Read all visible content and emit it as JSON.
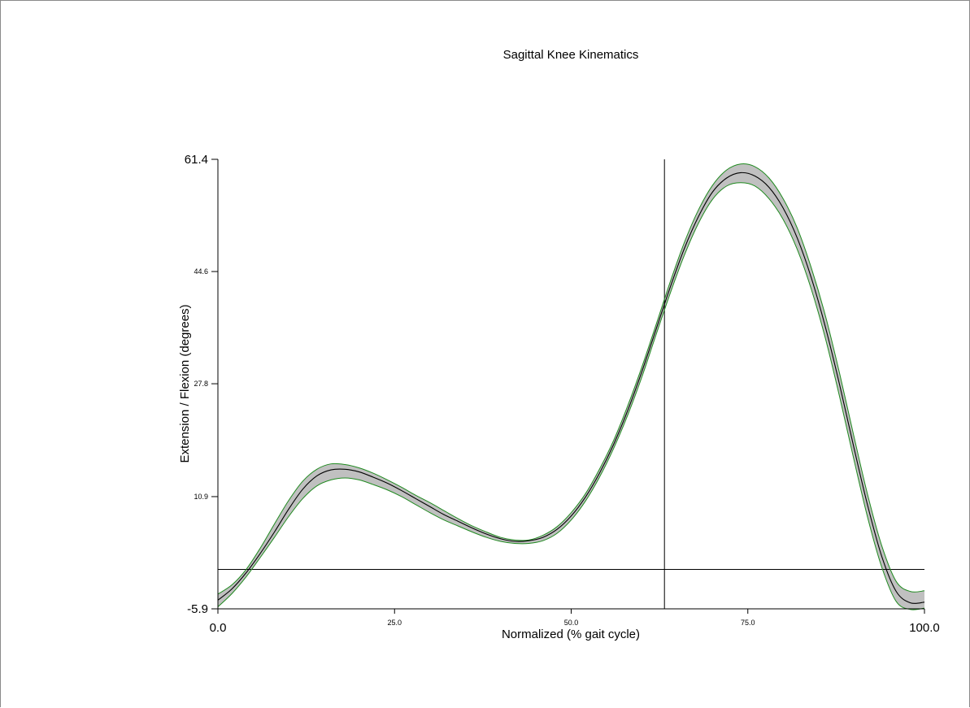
{
  "chart_data": {
    "type": "line",
    "title": "Sagittal Knee Kinematics",
    "xlabel": "Normalized (% gait cycle)",
    "ylabel": "Extension / Flexion (degrees)",
    "xlim": [
      0.0,
      100.0
    ],
    "ylim": [
      -5.9,
      61.4
    ],
    "x_ticks": [
      {
        "value": 0.0,
        "label": "0.0",
        "size": "big"
      },
      {
        "value": 25.0,
        "label": "25.0",
        "size": "small"
      },
      {
        "value": 50.0,
        "label": "50.0",
        "size": "small"
      },
      {
        "value": 75.0,
        "label": "75.0",
        "size": "small"
      },
      {
        "value": 100.0,
        "label": "100.0",
        "size": "big"
      }
    ],
    "y_ticks": [
      {
        "value": 61.4,
        "label": "61.4",
        "size": "big"
      },
      {
        "value": 44.6,
        "label": "44.6",
        "size": "small"
      },
      {
        "value": 27.8,
        "label": "27.8",
        "size": "small"
      },
      {
        "value": 10.9,
        "label": "10.9",
        "size": "small"
      },
      {
        "value": -5.9,
        "label": "-5.9",
        "size": "big"
      }
    ],
    "reference_lines": {
      "horizontal_y": 0.0,
      "vertical_x": 63.2
    },
    "grid": false,
    "colors": {
      "mean": "#000000",
      "band_fill": "#c0c0c0",
      "band_edge": "#1f8a1f",
      "axes": "#000000"
    },
    "x": [
      0,
      2,
      4,
      6,
      8,
      10,
      12,
      14,
      16,
      18,
      20,
      22,
      24,
      26,
      28,
      30,
      32,
      34,
      36,
      38,
      40,
      42,
      44,
      46,
      48,
      50,
      52,
      54,
      56,
      58,
      60,
      62,
      64,
      66,
      68,
      70,
      72,
      74,
      76,
      78,
      80,
      82,
      84,
      86,
      88,
      90,
      92,
      94,
      96,
      98,
      100
    ],
    "series": [
      {
        "role": "mean",
        "values": [
          -4.6,
          -2.9,
          -0.5,
          2.4,
          5.6,
          9.0,
          12.0,
          14.0,
          14.9,
          15.0,
          14.6,
          13.8,
          12.9,
          11.8,
          10.6,
          9.4,
          8.2,
          7.2,
          6.2,
          5.3,
          4.6,
          4.2,
          4.3,
          4.8,
          6.0,
          8.0,
          10.8,
          14.4,
          18.7,
          23.8,
          29.6,
          35.9,
          42.2,
          48.0,
          52.8,
          56.5,
          58.6,
          59.4,
          58.9,
          57.2,
          54.1,
          49.6,
          43.6,
          36.2,
          27.6,
          18.3,
          9.4,
          1.8,
          -3.3,
          -5.0,
          -4.9
        ]
      },
      {
        "role": "band-upper",
        "values": [
          -3.7,
          -2.3,
          0.0,
          3.2,
          6.8,
          10.3,
          13.2,
          15.0,
          15.8,
          15.7,
          15.2,
          14.4,
          13.4,
          12.3,
          11.1,
          10.0,
          8.8,
          7.6,
          6.5,
          5.6,
          4.8,
          4.4,
          4.4,
          5.1,
          6.4,
          8.5,
          11.3,
          15.0,
          19.3,
          24.5,
          30.3,
          36.6,
          43.0,
          48.9,
          53.8,
          57.5,
          59.8,
          60.7,
          60.3,
          58.6,
          55.5,
          51.1,
          45.1,
          37.9,
          29.3,
          20.0,
          11.0,
          3.4,
          -1.8,
          -3.3,
          -3.2
        ]
      },
      {
        "role": "band-lower",
        "values": [
          -5.6,
          -3.6,
          -1.1,
          1.8,
          4.8,
          7.9,
          10.6,
          12.5,
          13.4,
          13.7,
          13.4,
          12.7,
          11.9,
          10.9,
          9.7,
          8.5,
          7.4,
          6.5,
          5.6,
          4.8,
          4.2,
          3.9,
          3.9,
          4.3,
          5.4,
          7.4,
          10.2,
          13.8,
          18.1,
          23.1,
          28.8,
          35.1,
          41.3,
          47.0,
          51.8,
          55.4,
          57.4,
          57.9,
          57.4,
          55.5,
          52.4,
          47.9,
          41.9,
          34.5,
          25.8,
          16.5,
          7.6,
          0.2,
          -4.8,
          -6.0,
          -5.8
        ]
      }
    ]
  }
}
